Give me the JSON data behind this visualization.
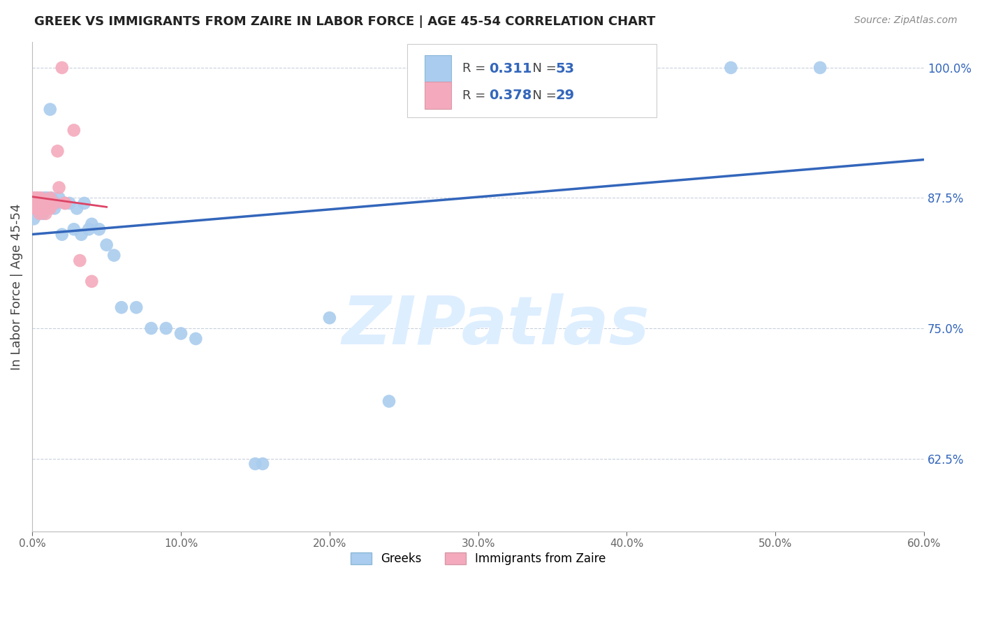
{
  "title": "GREEK VS IMMIGRANTS FROM ZAIRE IN LABOR FORCE | AGE 45-54 CORRELATION CHART",
  "source": "Source: ZipAtlas.com",
  "ylabel_left": "In Labor Force | Age 45-54",
  "x_min": 0.0,
  "x_max": 0.6,
  "y_min": 0.555,
  "y_max": 1.025,
  "yticks": [
    0.625,
    0.75,
    0.875,
    1.0
  ],
  "ytick_labels": [
    "62.5%",
    "75.0%",
    "87.5%",
    "100.0%"
  ],
  "xticks": [
    0.0,
    0.1,
    0.2,
    0.3,
    0.4,
    0.5,
    0.6
  ],
  "xtick_labels": [
    "0.0%",
    "10.0%",
    "20.0%",
    "30.0%",
    "40.0%",
    "50.0%",
    "60.0%"
  ],
  "greek_color": "#aaccee",
  "zaire_color": "#f4aabc",
  "greek_line_color": "#3366bb",
  "zaire_line_color": "#dd4466",
  "watermark_text": "ZIPatlas",
  "watermark_color": "#ddeeff",
  "greek_R": "0.311",
  "greek_N": "53",
  "zaire_R": "0.378",
  "zaire_N": "29",
  "greek_x": [
    0.001,
    0.002,
    0.002,
    0.003,
    0.003,
    0.003,
    0.004,
    0.004,
    0.005,
    0.005,
    0.005,
    0.006,
    0.007,
    0.007,
    0.008,
    0.008,
    0.009,
    0.009,
    0.01,
    0.01,
    0.011,
    0.012,
    0.013,
    0.014,
    0.015,
    0.016,
    0.018,
    0.02,
    0.022,
    0.025,
    0.028,
    0.03,
    0.033,
    0.035,
    0.038,
    0.04,
    0.045,
    0.05,
    0.055,
    0.06,
    0.07,
    0.08,
    0.09,
    0.1,
    0.11,
    0.15,
    0.155,
    0.2,
    0.24,
    0.31,
    0.38,
    0.47,
    0.53
  ],
  "greek_y": [
    0.855,
    0.87,
    0.875,
    0.87,
    0.875,
    0.865,
    0.87,
    0.865,
    0.875,
    0.865,
    0.86,
    0.87,
    0.87,
    0.86,
    0.875,
    0.865,
    0.87,
    0.875,
    0.87,
    0.875,
    0.87,
    0.96,
    0.875,
    0.87,
    0.865,
    0.87,
    0.875,
    0.84,
    0.87,
    0.87,
    0.845,
    0.865,
    0.84,
    0.87,
    0.845,
    0.85,
    0.845,
    0.83,
    0.82,
    0.77,
    0.77,
    0.75,
    0.75,
    0.745,
    0.74,
    0.62,
    0.62,
    0.76,
    0.68,
    1.0,
    1.0,
    1.0,
    1.0
  ],
  "zaire_x": [
    0.001,
    0.001,
    0.002,
    0.002,
    0.003,
    0.003,
    0.004,
    0.004,
    0.004,
    0.005,
    0.005,
    0.006,
    0.006,
    0.007,
    0.008,
    0.009,
    0.01,
    0.012,
    0.012,
    0.013,
    0.015,
    0.017,
    0.018,
    0.02,
    0.022,
    0.022,
    0.028,
    0.032,
    0.04
  ],
  "zaire_y": [
    0.87,
    0.875,
    0.865,
    0.875,
    0.87,
    0.865,
    0.875,
    0.87,
    0.865,
    0.87,
    0.86,
    0.875,
    0.87,
    0.865,
    0.87,
    0.86,
    0.87,
    0.875,
    0.865,
    0.87,
    0.87,
    0.92,
    0.885,
    1.0,
    0.87,
    0.87,
    0.94,
    0.815,
    0.795
  ]
}
